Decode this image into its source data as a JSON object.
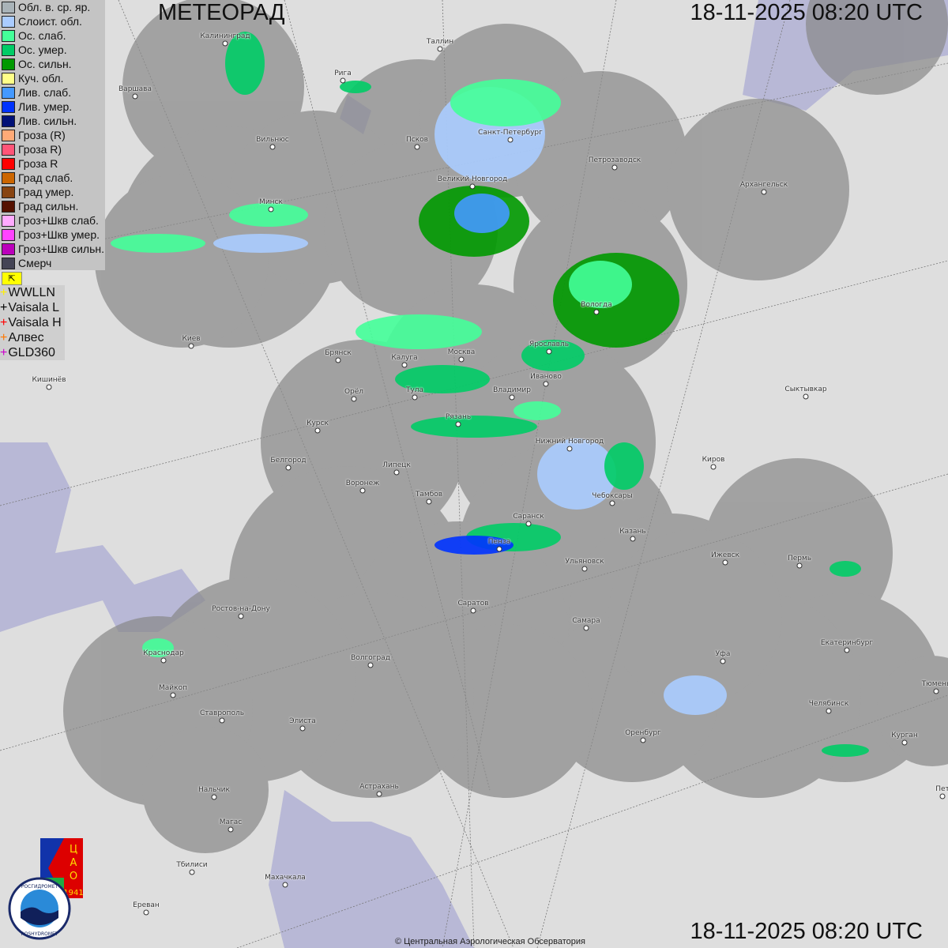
{
  "title": "МЕТЕОРАД",
  "timestamp": "18-11-2025  08:20 UTC",
  "copyright": "© Центральная Аэрологическая Обсерватория",
  "legend": [
    {
      "label": "Обл. в. ср. яр.",
      "color": "#a9b3b8"
    },
    {
      "label": "Слоист. обл.",
      "color": "#aaccff"
    },
    {
      "label": "Ос. слаб.",
      "color": "#44ff99"
    },
    {
      "label": "Ос. умер.",
      "color": "#00cc66"
    },
    {
      "label": "Ос. сильн.",
      "color": "#009900"
    },
    {
      "label": "Куч. обл.",
      "color": "#ffff88"
    },
    {
      "label": "Лив. слаб.",
      "color": "#4499ff"
    },
    {
      "label": "Лив. умер.",
      "color": "#0033ff"
    },
    {
      "label": "Лив. сильн.",
      "color": "#001177"
    },
    {
      "label": "Гроза (R)",
      "color": "#ffaa77"
    },
    {
      "label": "Гроза R)",
      "color": "#ff5577"
    },
    {
      "label": "Гроза R",
      "color": "#ff0000"
    },
    {
      "label": "Град слаб.",
      "color": "#cc6600"
    },
    {
      "label": "Град умер.",
      "color": "#884411"
    },
    {
      "label": "Град сильн.",
      "color": "#551100"
    },
    {
      "label": "Гроз+Шкв слаб.",
      "color": "#ffaaff"
    },
    {
      "label": "Гроз+Шкв умер.",
      "color": "#ff44ff"
    },
    {
      "label": "Гроз+Шкв сильн.",
      "color": "#bb00bb"
    },
    {
      "label": "Смерч",
      "color": "#444455"
    }
  ],
  "flag_icon": "corner-arrow-icon",
  "lightning_networks": [
    {
      "label": "WWLLN",
      "color": "#ffee00"
    },
    {
      "label": "Vaisala L",
      "color": "#000000"
    },
    {
      "label": "Vaisala H",
      "color": "#ff0000"
    },
    {
      "label": "Алвес",
      "color": "#ff7700"
    },
    {
      "label": "GLD360",
      "color": "#cc00cc"
    }
  ],
  "cities": [
    "Калининград",
    "Таллин",
    "Рига",
    "Варшава",
    "Псков",
    "Санкт-Петербург",
    "Петрозаводск",
    "Архангельск",
    "Вильнюс",
    "Великий Новгород",
    "Минск",
    "Вологда",
    "Ярославль",
    "Киев",
    "Брянск",
    "Калуга",
    "Москва",
    "Иваново",
    "Владимир",
    "Орёл",
    "Тула",
    "Кишинёв",
    "Сыктывкар",
    "Рязань",
    "Курск",
    "Нижний Новгород",
    "Киров",
    "Белгород",
    "Липецк",
    "Воронеж",
    "Тамбов",
    "Чебоксары",
    "Саранск",
    "Казань",
    "Пенза",
    "Ижевск",
    "Пермь",
    "Ульяновск",
    "Ростов-на-Дону",
    "Саратов",
    "Самара",
    "Уфа",
    "Екатеринбург",
    "Краснодар",
    "Волгоград",
    "Майкоп",
    "Тюмень",
    "Челябинск",
    "Ставрополь",
    "Элиста",
    "Оренбург",
    "Курган",
    "Астрахань",
    "Нальчик",
    "Пет",
    "Магас",
    "Тбилиси",
    "Махачкала",
    "Ереван"
  ],
  "logos": {
    "cao": {
      "text": "ЦАО",
      "year": "1941"
    },
    "roshydromet": {
      "text_ru": "РОСГИДРОМЕТ",
      "text_en": "ROSHYDROMET"
    }
  }
}
